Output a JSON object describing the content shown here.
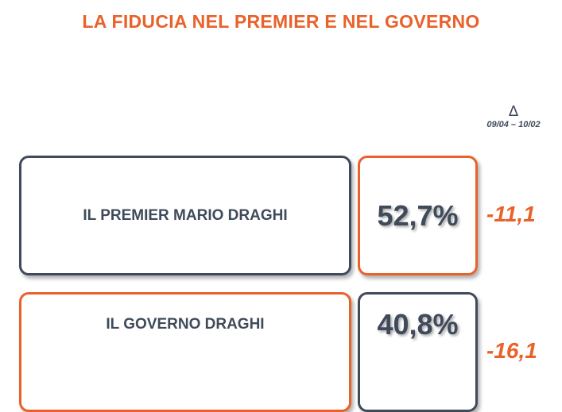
{
  "title": "LA FIDUCIA NEL PREMIER E NEL GOVERNO",
  "delta_header": {
    "symbol": "Δ",
    "range": "09/04 – 10/02"
  },
  "rows": [
    {
      "label": "IL PREMIER MARIO DRAGHI",
      "value": "52,7%",
      "change": "-11,1"
    },
    {
      "label": "IL GOVERNO DRAGHI",
      "value": "40,8%",
      "change": "-16,1"
    }
  ],
  "colors": {
    "accent": "#e8622a",
    "dark": "#3f4a5a"
  }
}
